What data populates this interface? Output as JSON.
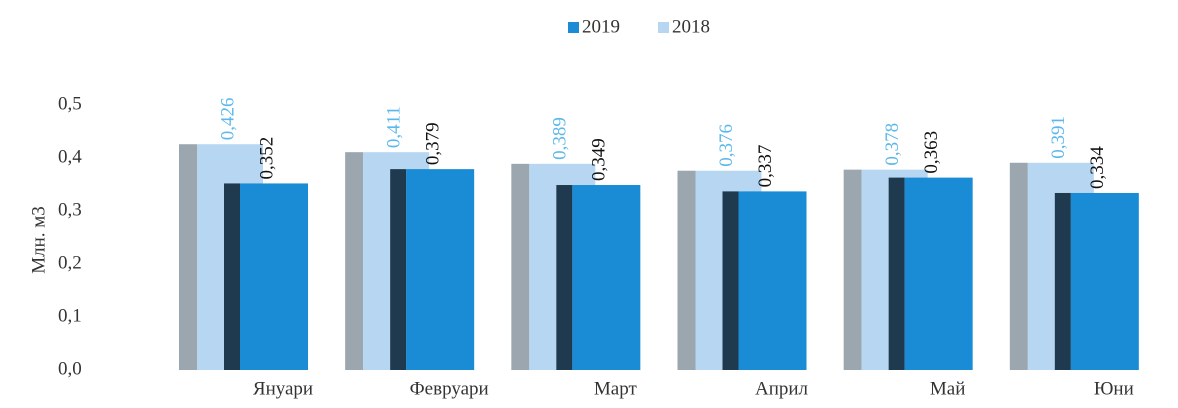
{
  "chart_data": {
    "type": "bar",
    "y_label": "Млн. м3",
    "categories": [
      "Януари",
      "Февруари",
      "Март",
      "Април",
      "Май",
      "Юни"
    ],
    "series": [
      {
        "name": "2019",
        "color": "#1a8bd5",
        "side_color": "#1f3a4e",
        "label_color": "#111111",
        "values": [
          0.352,
          0.379,
          0.349,
          0.337,
          0.363,
          0.334
        ],
        "value_labels": [
          "0,352",
          "0,379",
          "0,349",
          "0,337",
          "0,363",
          "0,334"
        ]
      },
      {
        "name": "2018",
        "color": "#b6d6f2",
        "side_color": "#9ba6ae",
        "label_color": "#5cb8ec",
        "values": [
          0.426,
          0.411,
          0.389,
          0.376,
          0.378,
          0.391
        ],
        "value_labels": [
          "0,426",
          "0,411",
          "0,389",
          "0,376",
          "0,378",
          "0,391"
        ]
      }
    ],
    "ylim": [
      0,
      0.5
    ],
    "yticks": [
      {
        "value": 0,
        "label": "0,0"
      },
      {
        "value": 0.1,
        "label": "0,1"
      },
      {
        "value": 0.2,
        "label": "0,2"
      },
      {
        "value": 0.3,
        "label": "0,3"
      },
      {
        "value": 0.4,
        "label": "0,4"
      },
      {
        "value": 0.5,
        "label": "0,5"
      }
    ],
    "legend": "top",
    "grid": false
  }
}
